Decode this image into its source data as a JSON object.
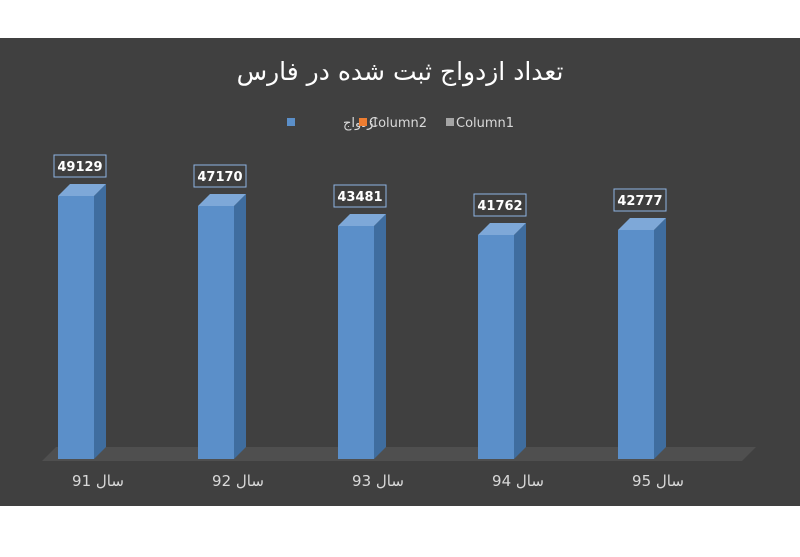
{
  "colors": {
    "background": "#404040",
    "series_blue": "#5b8fc9",
    "series_orange": "#ed7d31",
    "series_gray": "#a5a5a5",
    "floor": "#4f4f4f"
  },
  "legend": {
    "items": [
      {
        "label": "ازدواج",
        "color": "#5b8fc9"
      },
      {
        "label": "Column2",
        "color": "#ed7d31"
      },
      {
        "label": "Column1",
        "color": "#a5a5a5"
      }
    ]
  },
  "chart_data": {
    "type": "bar",
    "title": "تعداد ازدواج ثبت شده در فارس",
    "categories": [
      "سال 91",
      "سال 92",
      "سال 93",
      "سال 94",
      "سال 95"
    ],
    "series": [
      {
        "name": "ازدواج",
        "values": [
          49129,
          47170,
          43481,
          41762,
          42777
        ]
      }
    ],
    "data_labels": [
      "49129",
      "47170",
      "43481",
      "41762",
      "42777"
    ],
    "ylim": [
      0,
      49129
    ],
    "grid": false,
    "legend_position": "top"
  }
}
